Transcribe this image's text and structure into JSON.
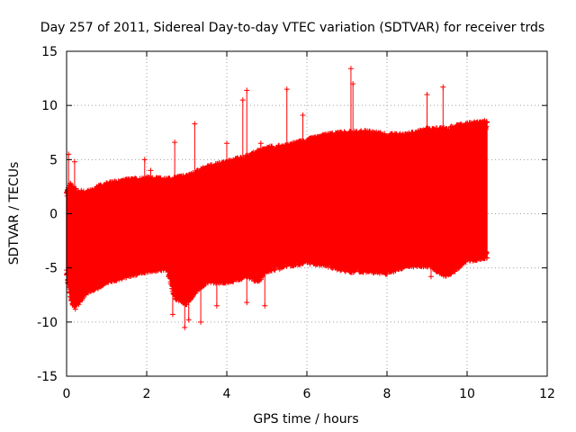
{
  "chart_data": {
    "type": "scatter",
    "title": "Day 257 of 2011, Sidereal Day-to-day VTEC variation (SDTVAR) for receiver trds",
    "xlabel": "GPS time / hours",
    "ylabel": "SDTVAR / TECUs",
    "xlim": [
      0,
      12
    ],
    "ylim": [
      -15,
      15
    ],
    "xticks": [
      0,
      2,
      4,
      6,
      8,
      10,
      12
    ],
    "yticks": [
      -15,
      -10,
      -5,
      0,
      5,
      10,
      15
    ],
    "grid": true,
    "marker": "+",
    "color": "#ff0000",
    "data_extent_x": [
      0,
      10.5
    ],
    "envelope": {
      "x": [
        0,
        0.1,
        0.2,
        0.3,
        0.5,
        0.8,
        1.0,
        1.5,
        2.0,
        2.5,
        2.7,
        3.0,
        3.2,
        3.5,
        4.0,
        4.5,
        4.8,
        5.0,
        5.5,
        6.0,
        6.5,
        7.0,
        7.5,
        8.0,
        8.5,
        9.0,
        9.5,
        10.0,
        10.5
      ],
      "upper": [
        1.8,
        2.5,
        2.0,
        1.8,
        1.7,
        2.2,
        2.5,
        2.8,
        3.0,
        2.9,
        3.0,
        3.2,
        3.5,
        4.0,
        4.5,
        5.0,
        5.5,
        5.8,
        6.0,
        6.5,
        7.0,
        7.2,
        7.3,
        7.0,
        7.0,
        7.5,
        7.6,
        8.0,
        8.2
      ],
      "lower": [
        -5.5,
        -7.5,
        -8.5,
        -8.0,
        -7.0,
        -6.5,
        -6.0,
        -5.5,
        -5.0,
        -4.8,
        -7.5,
        -8.0,
        -7.0,
        -6.0,
        -6.0,
        -5.5,
        -6.0,
        -5.0,
        -4.5,
        -4.2,
        -4.5,
        -5.0,
        -5.0,
        -5.2,
        -4.5,
        -4.5,
        -5.5,
        -4.0,
        -3.8
      ]
    },
    "spikes": [
      {
        "x": 0.05,
        "y": 5.5
      },
      {
        "x": 0.2,
        "y": 4.8
      },
      {
        "x": 0.22,
        "y": -8.8
      },
      {
        "x": 1.95,
        "y": 5.0
      },
      {
        "x": 2.1,
        "y": 4.0
      },
      {
        "x": 2.7,
        "y": 6.6
      },
      {
        "x": 2.65,
        "y": -9.3
      },
      {
        "x": 2.95,
        "y": -10.5
      },
      {
        "x": 3.05,
        "y": -9.8
      },
      {
        "x": 3.2,
        "y": 8.3
      },
      {
        "x": 3.35,
        "y": -10.0
      },
      {
        "x": 3.75,
        "y": -8.5
      },
      {
        "x": 4.0,
        "y": 6.5
      },
      {
        "x": 4.4,
        "y": 10.5
      },
      {
        "x": 4.5,
        "y": 11.4
      },
      {
        "x": 4.5,
        "y": -8.2
      },
      {
        "x": 4.85,
        "y": 6.5
      },
      {
        "x": 4.95,
        "y": -8.5
      },
      {
        "x": 5.5,
        "y": 11.5
      },
      {
        "x": 5.9,
        "y": 9.1
      },
      {
        "x": 7.1,
        "y": 13.4
      },
      {
        "x": 7.15,
        "y": 12.0
      },
      {
        "x": 8.2,
        "y": 7.4
      },
      {
        "x": 9.0,
        "y": 11.0
      },
      {
        "x": 9.1,
        "y": -5.8
      },
      {
        "x": 9.4,
        "y": 11.7
      }
    ]
  }
}
